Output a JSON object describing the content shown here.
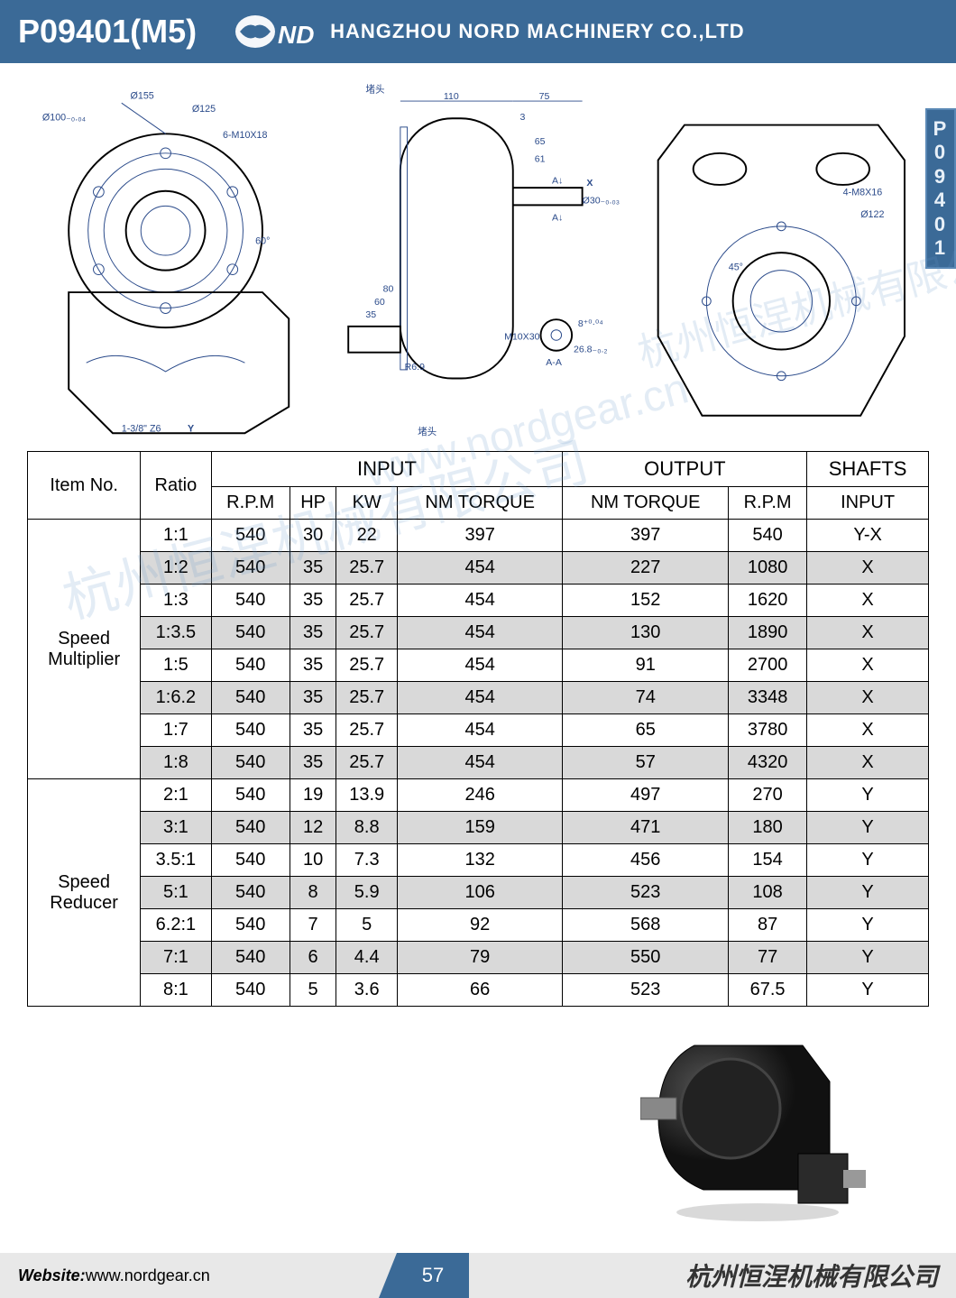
{
  "header": {
    "product_code": "P09401(M5)",
    "company_name": "HANGZHOU NORD MACHINERY CO.,LTD",
    "logo_text": "ND"
  },
  "side_tab": "P09401",
  "colors": {
    "brand_blue": "#3b6a97",
    "table_shade": "#d9d9d9",
    "drawing_blue": "#2a4a8a",
    "footer_grey": "#e8e8e8"
  },
  "drawings": {
    "view1": {
      "dims": [
        "Ø155",
        "Ø100₋₀.₀₄",
        "Ø125",
        "6-M10X18",
        "60°",
        "1-3/8\" Z6",
        "Y"
      ],
      "label_duitou": "堵头"
    },
    "view2": {
      "dims": [
        "110",
        "75",
        "3",
        "65",
        "61",
        "80",
        "60",
        "35",
        "R6.9",
        "X",
        "A↓",
        "A↓",
        "Ø30₋₀.₀₃",
        "M10X30",
        "A-A",
        "8⁺⁰·⁰⁴",
        "26.8₋₀.₂"
      ],
      "label_duitou": "堵头"
    },
    "view3": {
      "dims": [
        "4-M8X16",
        "Ø122",
        "45°"
      ]
    }
  },
  "watermarks": {
    "cn": "杭州恒涅机械有限公司",
    "url": "www.nordgear.cn"
  },
  "table": {
    "headers": {
      "item_no": "Item No.",
      "ratio": "Ratio",
      "input": "INPUT",
      "output": "OUTPUT",
      "shafts": "SHAFTS",
      "rpm": "R.P.M",
      "hp": "HP",
      "kw": "KW",
      "nm_torque": "NM TORQUE",
      "input_shaft": "INPUT"
    },
    "groups": [
      {
        "name": "Speed Multiplier",
        "rows": [
          {
            "ratio": "1:1",
            "rpm_in": "540",
            "hp": "30",
            "kw": "22",
            "nm_in": "397",
            "nm_out": "397",
            "rpm_out": "540",
            "shaft": "Y-X",
            "shade": false
          },
          {
            "ratio": "1:2",
            "rpm_in": "540",
            "hp": "35",
            "kw": "25.7",
            "nm_in": "454",
            "nm_out": "227",
            "rpm_out": "1080",
            "shaft": "X",
            "shade": true
          },
          {
            "ratio": "1:3",
            "rpm_in": "540",
            "hp": "35",
            "kw": "25.7",
            "nm_in": "454",
            "nm_out": "152",
            "rpm_out": "1620",
            "shaft": "X",
            "shade": false
          },
          {
            "ratio": "1:3.5",
            "rpm_in": "540",
            "hp": "35",
            "kw": "25.7",
            "nm_in": "454",
            "nm_out": "130",
            "rpm_out": "1890",
            "shaft": "X",
            "shade": true
          },
          {
            "ratio": "1:5",
            "rpm_in": "540",
            "hp": "35",
            "kw": "25.7",
            "nm_in": "454",
            "nm_out": "91",
            "rpm_out": "2700",
            "shaft": "X",
            "shade": false
          },
          {
            "ratio": "1:6.2",
            "rpm_in": "540",
            "hp": "35",
            "kw": "25.7",
            "nm_in": "454",
            "nm_out": "74",
            "rpm_out": "3348",
            "shaft": "X",
            "shade": true
          },
          {
            "ratio": "1:7",
            "rpm_in": "540",
            "hp": "35",
            "kw": "25.7",
            "nm_in": "454",
            "nm_out": "65",
            "rpm_out": "3780",
            "shaft": "X",
            "shade": false
          },
          {
            "ratio": "1:8",
            "rpm_in": "540",
            "hp": "35",
            "kw": "25.7",
            "nm_in": "454",
            "nm_out": "57",
            "rpm_out": "4320",
            "shaft": "X",
            "shade": true
          }
        ]
      },
      {
        "name": "Speed Reducer",
        "rows": [
          {
            "ratio": "2:1",
            "rpm_in": "540",
            "hp": "19",
            "kw": "13.9",
            "nm_in": "246",
            "nm_out": "497",
            "rpm_out": "270",
            "shaft": "Y",
            "shade": false
          },
          {
            "ratio": "3:1",
            "rpm_in": "540",
            "hp": "12",
            "kw": "8.8",
            "nm_in": "159",
            "nm_out": "471",
            "rpm_out": "180",
            "shaft": "Y",
            "shade": true
          },
          {
            "ratio": "3.5:1",
            "rpm_in": "540",
            "hp": "10",
            "kw": "7.3",
            "nm_in": "132",
            "nm_out": "456",
            "rpm_out": "154",
            "shaft": "Y",
            "shade": false
          },
          {
            "ratio": "5:1",
            "rpm_in": "540",
            "hp": "8",
            "kw": "5.9",
            "nm_in": "106",
            "nm_out": "523",
            "rpm_out": "108",
            "shaft": "Y",
            "shade": true
          },
          {
            "ratio": "6.2:1",
            "rpm_in": "540",
            "hp": "7",
            "kw": "5",
            "nm_in": "92",
            "nm_out": "568",
            "rpm_out": "87",
            "shaft": "Y",
            "shade": false
          },
          {
            "ratio": "7:1",
            "rpm_in": "540",
            "hp": "6",
            "kw": "4.4",
            "nm_in": "79",
            "nm_out": "550",
            "rpm_out": "77",
            "shaft": "Y",
            "shade": true
          },
          {
            "ratio": "8:1",
            "rpm_in": "540",
            "hp": "5",
            "kw": "3.6",
            "nm_in": "66",
            "nm_out": "523",
            "rpm_out": "67.5",
            "shaft": "Y",
            "shade": false
          }
        ]
      }
    ]
  },
  "footer": {
    "website_label": "Website:",
    "website_url": "www.nordgear.cn",
    "page_number": "57",
    "company_cn": "杭州恒涅机械有限公司"
  }
}
